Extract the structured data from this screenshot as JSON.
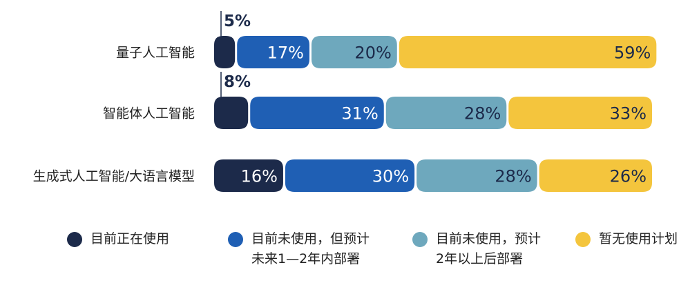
{
  "colors": {
    "current": "#1c2a4a",
    "one_two_years": "#1f5fb4",
    "two_plus_years": "#6ea8bd",
    "no_plan": "#f4c53d"
  },
  "legend": [
    {
      "lines": [
        "目前正在使用"
      ],
      "color": "#1c2a4a"
    },
    {
      "lines": [
        "目前未使用，但预计",
        "未来1—2年内部署"
      ],
      "color": "#1f5fb4"
    },
    {
      "lines": [
        "目前未使用，预计",
        "2年以上后部署"
      ],
      "color": "#6ea8bd"
    },
    {
      "lines": [
        "暂无使用计划"
      ],
      "color": "#f4c53d"
    }
  ],
  "chart_data": {
    "type": "bar",
    "orientation": "horizontal",
    "stacked": true,
    "unit": "%",
    "categories": [
      "量子人工智能",
      "智能体人工智能",
      "生成式人工智能/大语言模型"
    ],
    "series": [
      {
        "name": "目前正在使用",
        "values": [
          5,
          8,
          16
        ],
        "color": "#1c2a4a",
        "labels": [
          "5%",
          "8%",
          "16%"
        ]
      },
      {
        "name": "目前未使用，但预计未来1—2年内部署",
        "values": [
          17,
          31,
          30
        ],
        "color": "#1f5fb4",
        "labels": [
          "17%",
          "31%",
          "30%"
        ]
      },
      {
        "name": "目前未使用，预计2年以上后部署",
        "values": [
          20,
          28,
          28
        ],
        "color": "#6ea8bd",
        "labels": [
          "20%",
          "28%",
          "28%"
        ]
      },
      {
        "name": "暂无使用计划",
        "values": [
          59,
          33,
          26
        ],
        "color": "#f4c53d",
        "labels": [
          "59%",
          "33%",
          "26%"
        ]
      }
    ],
    "xlim": [
      0,
      100
    ],
    "grid": false,
    "legend_position": "bottom"
  }
}
